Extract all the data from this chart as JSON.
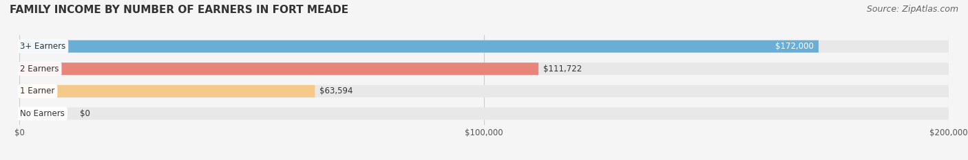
{
  "title": "FAMILY INCOME BY NUMBER OF EARNERS IN FORT MEADE",
  "source": "Source: ZipAtlas.com",
  "categories": [
    "No Earners",
    "1 Earner",
    "2 Earners",
    "3+ Earners"
  ],
  "values": [
    0,
    63594,
    111722,
    172000
  ],
  "bar_colors": [
    "#f48ca0",
    "#f5c98a",
    "#e8857a",
    "#6aaed6"
  ],
  "label_colors": [
    "#333333",
    "#333333",
    "#333333",
    "#ffffff"
  ],
  "value_labels": [
    "$0",
    "$63,594",
    "$111,722",
    "$172,000"
  ],
  "xlim": [
    0,
    200000
  ],
  "xtick_values": [
    0,
    100000,
    200000
  ],
  "xtick_labels": [
    "$0",
    "$100,000",
    "$200,000"
  ],
  "background_color": "#f5f5f5",
  "bar_background_color": "#e8e8e8",
  "title_fontsize": 11,
  "source_fontsize": 9,
  "bar_height": 0.55,
  "figsize": [
    14.06,
    2.33
  ]
}
